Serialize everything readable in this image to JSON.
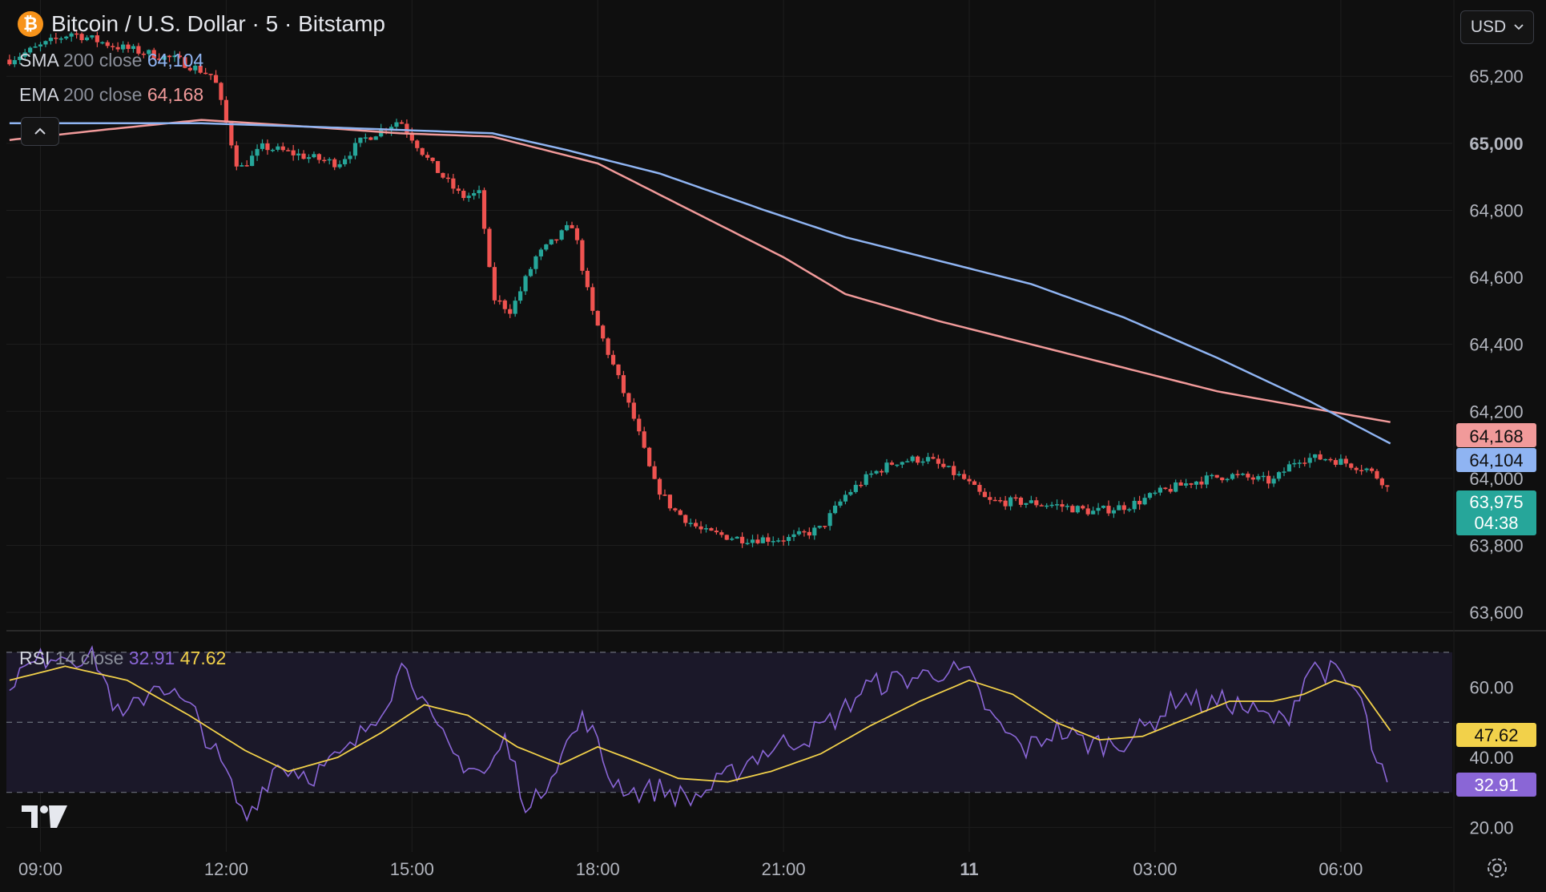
{
  "header": {
    "title": "Bitcoin / U.S. Dollar · 5 · Bitstamp",
    "logo_glyph": "₿",
    "currency": "USD",
    "icons": [
      "bitcoin-icon",
      "chevron-down-icon",
      "chevron-up-icon",
      "tradingview-logo-icon",
      "settings-icon"
    ]
  },
  "indicators": {
    "sma": {
      "name": "SMA",
      "params": "200 close",
      "value": "64,104",
      "color": "#8fb4f2"
    },
    "ema": {
      "name": "EMA",
      "params": "200 close",
      "value": "64,168",
      "color": "#f19a9a"
    },
    "rsi": {
      "name": "RSI",
      "params": "14 close",
      "value": "32.91",
      "ma_value": "47.62",
      "color": "#8a66d6",
      "ma_color": "#f2d14a"
    }
  },
  "price_badges": {
    "ema": "64,168",
    "sma": "64,104",
    "last": "63,975",
    "countdown": "04:38"
  },
  "colors": {
    "up": "#26a69a",
    "down": "#ef5350",
    "background": "#0f0f0f",
    "grid": "#1e1e1e"
  },
  "chart_data": [
    {
      "type": "candlestick",
      "interval": "5",
      "ylim": [
        63550,
        65380
      ],
      "ytick_values": [
        63600,
        63800,
        64000,
        64200,
        64400,
        64600,
        64800,
        65000,
        65200
      ],
      "ytick_labels": [
        "63,600",
        "63,800",
        "64,000",
        "64,200",
        "64,400",
        "64,600",
        "64,800",
        "65,000",
        "65,200"
      ],
      "xticks": [
        {
          "hour": 0,
          "label": "09:00"
        },
        {
          "hour": 3,
          "label": "12:00"
        },
        {
          "hour": 6,
          "label": "15:00"
        },
        {
          "hour": 9,
          "label": "18:00"
        },
        {
          "hour": 12,
          "label": "21:00"
        },
        {
          "hour": 15,
          "label": "11"
        },
        {
          "hour": 18,
          "label": "03:00"
        },
        {
          "hour": 21,
          "label": "06:00"
        }
      ],
      "x_hour_range": [
        -0.55,
        22.8
      ],
      "last_price": 63975,
      "price_keypoints": [
        [
          -0.5,
          65250
        ],
        [
          0.5,
          65330
        ],
        [
          1.2,
          65290
        ],
        [
          2.2,
          65250
        ],
        [
          2.8,
          65200
        ],
        [
          3.2,
          64920
        ],
        [
          3.6,
          64990
        ],
        [
          4.3,
          64960
        ],
        [
          4.8,
          64940
        ],
        [
          5.2,
          65010
        ],
        [
          5.5,
          65040
        ],
        [
          5.8,
          65070
        ],
        [
          6.3,
          64940
        ],
        [
          6.8,
          64840
        ],
        [
          7.1,
          64850
        ],
        [
          7.3,
          64540
        ],
        [
          7.6,
          64500
        ],
        [
          8.0,
          64660
        ],
        [
          8.6,
          64760
        ],
        [
          8.9,
          64500
        ],
        [
          9.2,
          64360
        ],
        [
          9.6,
          64170
        ],
        [
          9.9,
          63990
        ],
        [
          10.2,
          63910
        ],
        [
          10.7,
          63840
        ],
        [
          11.3,
          63820
        ],
        [
          12.1,
          63820
        ],
        [
          12.6,
          63850
        ],
        [
          13.0,
          63950
        ],
        [
          13.4,
          64010
        ],
        [
          13.8,
          64050
        ],
        [
          14.3,
          64060
        ],
        [
          14.9,
          64000
        ],
        [
          15.3,
          63930
        ],
        [
          15.8,
          63930
        ],
        [
          16.4,
          63920
        ],
        [
          17.0,
          63900
        ],
        [
          17.6,
          63920
        ],
        [
          18.1,
          63960
        ],
        [
          18.6,
          63990
        ],
        [
          19.2,
          64010
        ],
        [
          19.9,
          63990
        ],
        [
          20.3,
          64060
        ],
        [
          20.8,
          64060
        ],
        [
          21.4,
          64030
        ],
        [
          21.8,
          63975
        ]
      ],
      "ema_keypoints": [
        [
          -0.5,
          65010
        ],
        [
          1.0,
          65040
        ],
        [
          2.6,
          65070
        ],
        [
          4.3,
          65050
        ],
        [
          5.8,
          65030
        ],
        [
          7.3,
          65020
        ],
        [
          9.0,
          64940
        ],
        [
          10.5,
          64800
        ],
        [
          12.0,
          64660
        ],
        [
          13.0,
          64550
        ],
        [
          14.5,
          64470
        ],
        [
          16.0,
          64400
        ],
        [
          17.5,
          64330
        ],
        [
          19.0,
          64260
        ],
        [
          20.5,
          64210
        ],
        [
          21.8,
          64168
        ]
      ],
      "sma_keypoints": [
        [
          -0.5,
          65060
        ],
        [
          1.0,
          65060
        ],
        [
          2.6,
          65060
        ],
        [
          4.3,
          65050
        ],
        [
          5.8,
          65040
        ],
        [
          7.3,
          65030
        ],
        [
          8.5,
          64980
        ],
        [
          10.0,
          64910
        ],
        [
          11.7,
          64800
        ],
        [
          13.0,
          64720
        ],
        [
          14.5,
          64650
        ],
        [
          16.0,
          64580
        ],
        [
          17.5,
          64480
        ],
        [
          19.0,
          64360
        ],
        [
          20.5,
          64230
        ],
        [
          21.8,
          64104
        ]
      ]
    },
    {
      "type": "line",
      "name": "RSI",
      "ylim": [
        13,
        75
      ],
      "ytick_values": [
        20,
        40,
        60
      ],
      "ytick_labels": [
        "20.00",
        "40.00",
        "60.00"
      ],
      "bands": [
        30,
        50,
        70
      ],
      "last_rsi": 32.91,
      "last_rsi_ma": 47.62,
      "rsi_keypoints": [
        [
          -0.5,
          62
        ],
        [
          0.2,
          70
        ],
        [
          0.9,
          68
        ],
        [
          1.3,
          50
        ],
        [
          1.9,
          62
        ],
        [
          2.5,
          52
        ],
        [
          3.0,
          35
        ],
        [
          3.3,
          22
        ],
        [
          3.8,
          38
        ],
        [
          4.4,
          35
        ],
        [
          5.0,
          42
        ],
        [
          5.6,
          57
        ],
        [
          5.9,
          68
        ],
        [
          6.3,
          50
        ],
        [
          6.7,
          40
        ],
        [
          7.2,
          35
        ],
        [
          7.5,
          45
        ],
        [
          7.9,
          24
        ],
        [
          8.3,
          38
        ],
        [
          8.8,
          52
        ],
        [
          9.2,
          34
        ],
        [
          9.6,
          30
        ],
        [
          10.0,
          31
        ],
        [
          10.5,
          28
        ],
        [
          11.0,
          33
        ],
        [
          11.5,
          40
        ],
        [
          12.0,
          44
        ],
        [
          12.4,
          46
        ],
        [
          12.9,
          52
        ],
        [
          13.3,
          60
        ],
        [
          13.8,
          62
        ],
        [
          14.2,
          63
        ],
        [
          14.6,
          65
        ],
        [
          15.0,
          63
        ],
        [
          15.4,
          50
        ],
        [
          15.9,
          42
        ],
        [
          16.4,
          48
        ],
        [
          16.9,
          44
        ],
        [
          17.4,
          44
        ],
        [
          17.9,
          49
        ],
        [
          18.4,
          58
        ],
        [
          18.8,
          55
        ],
        [
          19.2,
          56
        ],
        [
          19.7,
          52
        ],
        [
          20.1,
          50
        ],
        [
          20.5,
          66
        ],
        [
          20.9,
          64
        ],
        [
          21.3,
          58
        ],
        [
          21.6,
          36
        ],
        [
          21.8,
          32.91
        ]
      ],
      "rsi_ma_keypoints": [
        [
          -0.5,
          62
        ],
        [
          0.4,
          66
        ],
        [
          1.4,
          62
        ],
        [
          2.4,
          52
        ],
        [
          3.3,
          42
        ],
        [
          4.0,
          36
        ],
        [
          4.8,
          40
        ],
        [
          5.5,
          47
        ],
        [
          6.2,
          55
        ],
        [
          6.9,
          52
        ],
        [
          7.7,
          43
        ],
        [
          8.4,
          38
        ],
        [
          9.0,
          43
        ],
        [
          9.6,
          39
        ],
        [
          10.3,
          34
        ],
        [
          11.1,
          33
        ],
        [
          11.8,
          36
        ],
        [
          12.6,
          41
        ],
        [
          13.4,
          49
        ],
        [
          14.2,
          56
        ],
        [
          15.0,
          62
        ],
        [
          15.7,
          58
        ],
        [
          16.4,
          50
        ],
        [
          17.1,
          45
        ],
        [
          17.8,
          46
        ],
        [
          18.5,
          51
        ],
        [
          19.2,
          56
        ],
        [
          19.9,
          56
        ],
        [
          20.4,
          58
        ],
        [
          20.9,
          62
        ],
        [
          21.3,
          60
        ],
        [
          21.8,
          47.62
        ]
      ]
    }
  ]
}
